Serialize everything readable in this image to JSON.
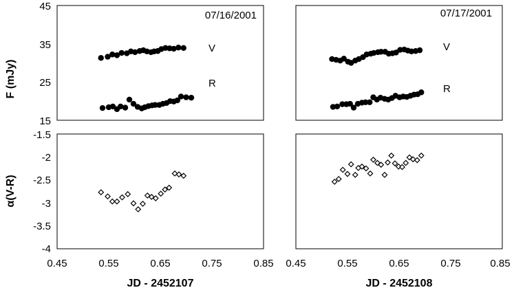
{
  "colors": {
    "marker": "#000000",
    "open_marker_fill": "#ffffff",
    "frame": "#000000"
  },
  "chart_data": [
    {
      "id": "flux-night1",
      "type": "scatter",
      "date_label": "07/16/2001",
      "ylabel": "F (mJy)",
      "xlim": [
        0.45,
        0.85
      ],
      "ylim": [
        15,
        45
      ],
      "yticks": [
        "15",
        "25",
        "35",
        "45"
      ],
      "grid": false,
      "series": [
        {
          "name": "V",
          "marker": "filled-circle",
          "x": [
            0.535,
            0.548,
            0.557,
            0.566,
            0.575,
            0.585,
            0.593,
            0.601,
            0.61,
            0.617,
            0.624,
            0.632,
            0.638,
            0.645,
            0.652,
            0.66,
            0.668,
            0.676,
            0.685,
            0.695
          ],
          "y": [
            31.3,
            31.6,
            32.2,
            32.0,
            32.6,
            32.5,
            33.0,
            32.8,
            33.1,
            33.3,
            33.0,
            32.8,
            33.0,
            33.1,
            33.6,
            33.9,
            33.8,
            33.7,
            34.0,
            33.9
          ]
        },
        {
          "name": "R",
          "marker": "filled-circle",
          "x": [
            0.538,
            0.55,
            0.558,
            0.566,
            0.573,
            0.582,
            0.59,
            0.598,
            0.606,
            0.614,
            0.62,
            0.627,
            0.634,
            0.64,
            0.648,
            0.655,
            0.662,
            0.669,
            0.676,
            0.683,
            0.69,
            0.7,
            0.71
          ],
          "y": [
            18.2,
            18.4,
            18.6,
            17.9,
            18.6,
            18.3,
            20.4,
            19.3,
            18.5,
            18.1,
            18.4,
            18.7,
            18.9,
            19.0,
            19.0,
            19.3,
            19.5,
            20.0,
            19.9,
            20.2,
            21.2,
            21.0,
            20.9
          ]
        }
      ],
      "annotations": [
        "V",
        "R"
      ]
    },
    {
      "id": "flux-night2",
      "type": "scatter",
      "date_label": "07/17/2001",
      "xlim": [
        0.45,
        0.85
      ],
      "ylim": [
        15,
        45
      ],
      "grid": false,
      "series": [
        {
          "name": "V",
          "marker": "filled-circle",
          "x": [
            0.52,
            0.528,
            0.536,
            0.543,
            0.551,
            0.557,
            0.565,
            0.572,
            0.58,
            0.587,
            0.595,
            0.601,
            0.609,
            0.615,
            0.623,
            0.63,
            0.637,
            0.644,
            0.652,
            0.66,
            0.667,
            0.674,
            0.682,
            0.69
          ],
          "y": [
            31.0,
            30.8,
            30.6,
            31.1,
            30.3,
            30.0,
            30.6,
            31.0,
            31.5,
            32.2,
            32.4,
            32.6,
            32.8,
            32.9,
            32.9,
            32.4,
            32.5,
            32.7,
            33.4,
            33.5,
            33.2,
            33.0,
            33.1,
            33.3
          ]
        },
        {
          "name": "R",
          "marker": "filled-circle",
          "x": [
            0.522,
            0.53,
            0.54,
            0.548,
            0.555,
            0.562,
            0.57,
            0.578,
            0.585,
            0.593,
            0.6,
            0.607,
            0.614,
            0.622,
            0.629,
            0.636,
            0.643,
            0.651,
            0.658,
            0.665,
            0.672,
            0.679,
            0.686,
            0.693
          ],
          "y": [
            18.5,
            18.6,
            19.2,
            19.2,
            19.3,
            18.3,
            19.3,
            19.6,
            19.7,
            19.7,
            21.0,
            20.4,
            20.9,
            20.6,
            20.4,
            20.8,
            21.4,
            21.0,
            21.2,
            21.1,
            21.4,
            21.7,
            21.8,
            22.3
          ]
        }
      ],
      "annotations": [
        "V",
        "R"
      ]
    },
    {
      "id": "alpha-night1",
      "type": "scatter",
      "ylabel": "α(V-R)",
      "xlabel": "JD - 2452107",
      "xlim": [
        0.45,
        0.85
      ],
      "ylim": [
        -4,
        -1.5
      ],
      "xticks": [
        "0.45",
        "0.55",
        "0.65",
        "0.75",
        "0.85"
      ],
      "yticks": [
        "-4",
        "-3.5",
        "-3",
        "-2.5",
        "-2",
        "-1.5"
      ],
      "grid": false,
      "series": [
        {
          "name": "α(V-R)",
          "marker": "open-diamond",
          "x": [
            0.535,
            0.548,
            0.557,
            0.566,
            0.576,
            0.587,
            0.598,
            0.607,
            0.616,
            0.625,
            0.633,
            0.641,
            0.651,
            0.659,
            0.667,
            0.678,
            0.686,
            0.695
          ],
          "y": [
            -2.77,
            -2.86,
            -2.97,
            -2.97,
            -2.88,
            -2.81,
            -3.01,
            -3.14,
            -3.02,
            -2.84,
            -2.87,
            -2.9,
            -2.8,
            -2.71,
            -2.67,
            -2.36,
            -2.38,
            -2.41
          ]
        }
      ]
    },
    {
      "id": "alpha-night2",
      "type": "scatter",
      "xlabel": "JD - 2452108",
      "xlim": [
        0.45,
        0.85
      ],
      "ylim": [
        -4,
        -1.5
      ],
      "xticks": [
        "0.45",
        "0.55",
        "0.65",
        "0.75",
        "0.85"
      ],
      "grid": false,
      "series": [
        {
          "name": "α(V-R)",
          "marker": "open-diamond",
          "x": [
            0.525,
            0.533,
            0.541,
            0.55,
            0.557,
            0.565,
            0.571,
            0.578,
            0.586,
            0.594,
            0.6,
            0.608,
            0.615,
            0.622,
            0.628,
            0.635,
            0.642,
            0.649,
            0.656,
            0.663,
            0.67,
            0.677,
            0.685,
            0.693
          ],
          "y": [
            -2.54,
            -2.48,
            -2.28,
            -2.37,
            -2.16,
            -2.39,
            -2.24,
            -2.21,
            -2.25,
            -2.36,
            -2.06,
            -2.13,
            -2.17,
            -2.39,
            -2.12,
            -1.97,
            -2.14,
            -2.21,
            -2.22,
            -2.13,
            -2.01,
            -2.05,
            -2.07,
            -1.97
          ]
        }
      ]
    }
  ]
}
